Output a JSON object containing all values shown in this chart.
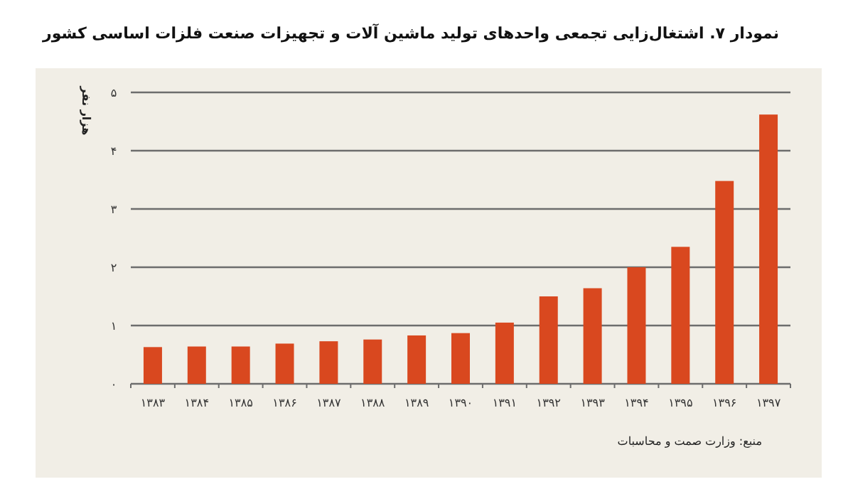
{
  "chart_data": {
    "type": "bar",
    "title": "نمودار ۷. اشتغال‌زایی تجمعی واحدهای تولید ماشین آلات و تجهیزات صنعت فلزات اساسی کشور",
    "ylabel": "هزار نفر",
    "annotations": [
      "منبع: وزارت صمت و محاسبات"
    ],
    "categories": [
      "۱۳۸۳",
      "۱۳۸۴",
      "۱۳۸۵",
      "۱۳۸۶",
      "۱۳۸۷",
      "۱۳۸۸",
      "۱۳۸۹",
      "۱۳۹۰",
      "۱۳۹۱",
      "۱۳۹۲",
      "۱۳۹۳",
      "۱۳۹۴",
      "۱۳۹۵",
      "۱۳۹۶",
      "۱۳۹۷"
    ],
    "values": [
      0.63,
      0.64,
      0.64,
      0.69,
      0.73,
      0.76,
      0.83,
      0.87,
      1.05,
      1.5,
      1.64,
      2.0,
      2.35,
      3.48,
      4.62
    ],
    "color": "#d9481f",
    "ylim": [
      0,
      5
    ],
    "yticks": [
      {
        "value": 0,
        "label": "۰"
      },
      {
        "value": 1,
        "label": "۱"
      },
      {
        "value": 2,
        "label": "۲"
      },
      {
        "value": 3,
        "label": "۳"
      },
      {
        "value": 4,
        "label": "۴"
      },
      {
        "value": 5,
        "label": "۵"
      }
    ],
    "grid": "y",
    "legend": false
  }
}
